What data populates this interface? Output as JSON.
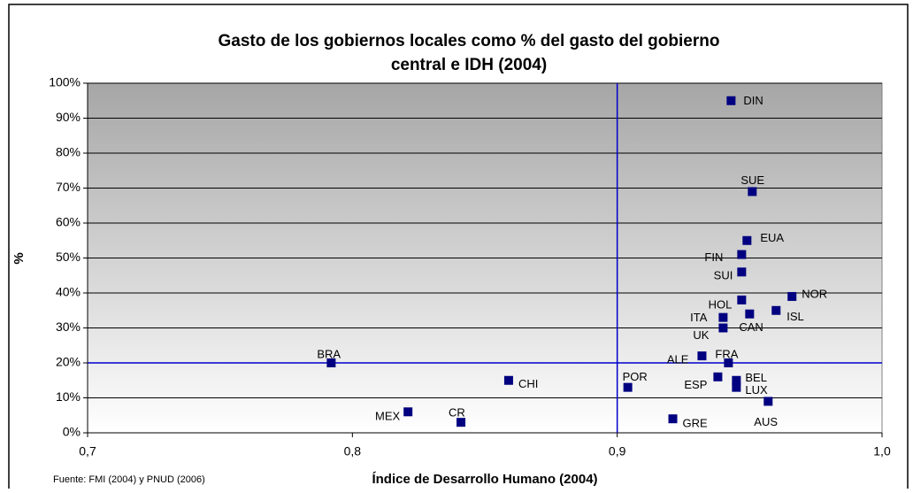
{
  "chart_data": {
    "type": "scatter",
    "title": [
      "Gasto de los gobiernos locales como % del gasto del gobierno",
      "central e IDH (2004)"
    ],
    "xlabel": "Índice de Desarrollo Humano (2004)",
    "ylabel": "%",
    "source": "Fuente: FMI (2004)  y  PNUD (2006)",
    "color": "#000080",
    "labels": [
      "DIN",
      "SUE",
      "EUA",
      "FIN",
      "SUI",
      "NOR",
      "HOL",
      "ISL",
      "CAN",
      "ITA",
      "UK",
      "ALE",
      "FRA",
      "BRA",
      "CHI",
      "ESP",
      "BEL",
      "LUX",
      "POR",
      "AUS",
      "MEX",
      "GRE",
      "CR"
    ],
    "x": [
      0.943,
      0.951,
      0.949,
      0.947,
      0.947,
      0.966,
      0.947,
      0.96,
      0.95,
      0.94,
      0.94,
      0.932,
      0.942,
      0.792,
      0.859,
      0.938,
      0.945,
      0.945,
      0.904,
      0.957,
      0.821,
      0.921,
      0.841
    ],
    "values": [
      95,
      69,
      55,
      51,
      46,
      39,
      38,
      35,
      34,
      33,
      30,
      22,
      20,
      20,
      15,
      16,
      15,
      13,
      13,
      9,
      6,
      4,
      3
    ],
    "xlim": [
      0.7,
      1.0
    ],
    "xticks": [
      {
        "value": 0.7,
        "label": "0,7"
      },
      {
        "value": 0.8,
        "label": "0,8"
      },
      {
        "value": 0.9,
        "label": "0,9"
      },
      {
        "value": 1.0,
        "label": "1,0"
      }
    ],
    "ylim": [
      0,
      100
    ],
    "yticks": [
      {
        "value": 0,
        "label": "0%"
      },
      {
        "value": 10,
        "label": "10%"
      },
      {
        "value": 20,
        "label": "20%"
      },
      {
        "value": 30,
        "label": "30%"
      },
      {
        "value": 40,
        "label": "40%"
      },
      {
        "value": 50,
        "label": "50%"
      },
      {
        "value": 60,
        "label": "60%"
      },
      {
        "value": 70,
        "label": "70%"
      },
      {
        "value": 80,
        "label": "80%"
      },
      {
        "value": 90,
        "label": "90%"
      },
      {
        "value": 100,
        "label": "100%"
      }
    ],
    "grid": true,
    "reference_x": 0.9,
    "reference_y": 20,
    "reference_color": "#0000cc"
  }
}
